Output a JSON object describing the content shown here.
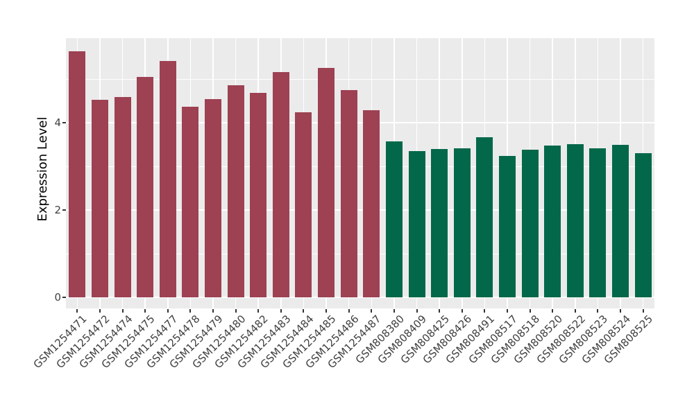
{
  "figure": {
    "background": "#FFFFFF",
    "panel_background": "#EBEBEB",
    "grid_color": "#FFFFFF",
    "tick_color": "#333333",
    "axis_text_color": "#404040",
    "group1_color": "#9D4153",
    "group2_color": "#03684A"
  },
  "chart_data": {
    "type": "bar",
    "title": "",
    "xlabel": "",
    "ylabel": "Expression Level",
    "ylim": [
      0,
      5.95
    ],
    "y_major_ticks": [
      0,
      2,
      4
    ],
    "y_minor_gridlines": [
      1,
      3,
      5
    ],
    "grid": true,
    "legend_position": "none",
    "bars": [
      {
        "label": "GSM1254471",
        "value": 5.64,
        "color": "#9D4153"
      },
      {
        "label": "GSM1254472",
        "value": 4.53,
        "color": "#9D4153"
      },
      {
        "label": "GSM1254474",
        "value": 4.59,
        "color": "#9D4153"
      },
      {
        "label": "GSM1254475",
        "value": 5.05,
        "color": "#9D4153"
      },
      {
        "label": "GSM1254477",
        "value": 5.42,
        "color": "#9D4153"
      },
      {
        "label": "GSM1254478",
        "value": 4.37,
        "color": "#9D4153"
      },
      {
        "label": "GSM1254479",
        "value": 4.54,
        "color": "#9D4153"
      },
      {
        "label": "GSM1254480",
        "value": 4.87,
        "color": "#9D4153"
      },
      {
        "label": "GSM1254482",
        "value": 4.69,
        "color": "#9D4153"
      },
      {
        "label": "GSM1254483",
        "value": 5.16,
        "color": "#9D4153"
      },
      {
        "label": "GSM1254484",
        "value": 4.24,
        "color": "#9D4153"
      },
      {
        "label": "GSM1254485",
        "value": 5.27,
        "color": "#9D4153"
      },
      {
        "label": "GSM1254486",
        "value": 4.75,
        "color": "#9D4153"
      },
      {
        "label": "GSM1254487",
        "value": 4.3,
        "color": "#9D4153"
      },
      {
        "label": "GSM808380",
        "value": 3.58,
        "color": "#03684A"
      },
      {
        "label": "GSM808409",
        "value": 3.36,
        "color": "#03684A"
      },
      {
        "label": "GSM808425",
        "value": 3.41,
        "color": "#03684A"
      },
      {
        "label": "GSM808426",
        "value": 3.42,
        "color": "#03684A"
      },
      {
        "label": "GSM808491",
        "value": 3.68,
        "color": "#03684A"
      },
      {
        "label": "GSM808517",
        "value": 3.25,
        "color": "#03684A"
      },
      {
        "label": "GSM808518",
        "value": 3.38,
        "color": "#03684A"
      },
      {
        "label": "GSM808520",
        "value": 3.48,
        "color": "#03684A"
      },
      {
        "label": "GSM808522",
        "value": 3.51,
        "color": "#03684A"
      },
      {
        "label": "GSM808523",
        "value": 3.42,
        "color": "#03684A"
      },
      {
        "label": "GSM808524",
        "value": 3.49,
        "color": "#03684A"
      },
      {
        "label": "GSM808525",
        "value": 3.31,
        "color": "#03684A"
      }
    ]
  }
}
